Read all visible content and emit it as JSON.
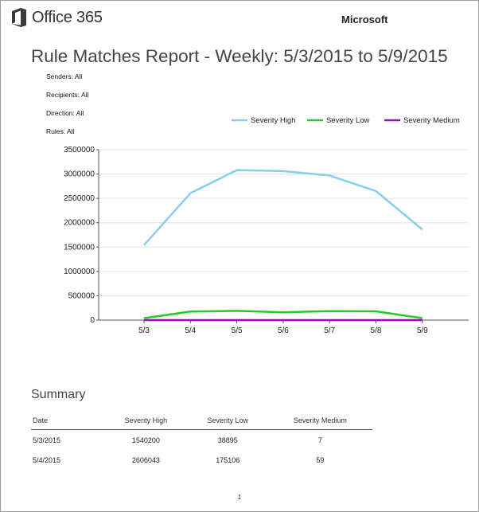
{
  "header": {
    "brand_name": "Office 365",
    "company": "Microsoft",
    "title": "Rule Matches Report - Weekly: 5/3/2015 to 5/9/2015"
  },
  "filters": [
    "Senders: All",
    "Recipients: All",
    "Direction: All",
    "Rules: All"
  ],
  "chart_data": {
    "type": "line",
    "x": [
      "5/3",
      "5/4",
      "5/5",
      "5/6",
      "5/7",
      "5/8",
      "5/9"
    ],
    "series": [
      {
        "name": "Severity High",
        "color": "#87CEEB",
        "values": [
          1540200,
          2606043,
          3080000,
          3060000,
          2970000,
          2650000,
          1860000
        ]
      },
      {
        "name": "Severity Low",
        "color": "#22CC22",
        "values": [
          38895,
          175106,
          190000,
          160000,
          185000,
          180000,
          40000
        ]
      },
      {
        "name": "Severity Medium",
        "color": "#AA00CC",
        "values": [
          7,
          59,
          60,
          50,
          55,
          50,
          20
        ]
      }
    ],
    "y_ticks": [
      "3500000",
      "3000000",
      "2500000",
      "2000000",
      "1500000",
      "1000000",
      "500000",
      "0"
    ],
    "ylim": [
      0,
      3500000
    ],
    "grid": "horizontal",
    "legend_position": "top-right",
    "title": "",
    "xlabel": "",
    "ylabel": ""
  },
  "summary": {
    "title": "Summary",
    "columns": [
      "Date",
      "Severity High",
      "Severity Low",
      "Severity Medium"
    ],
    "rows": [
      [
        "5/3/2015",
        "1540200",
        "38895",
        "7"
      ],
      [
        "5/4/2015",
        "2606043",
        "175106",
        "59"
      ]
    ]
  },
  "page_number": "1"
}
